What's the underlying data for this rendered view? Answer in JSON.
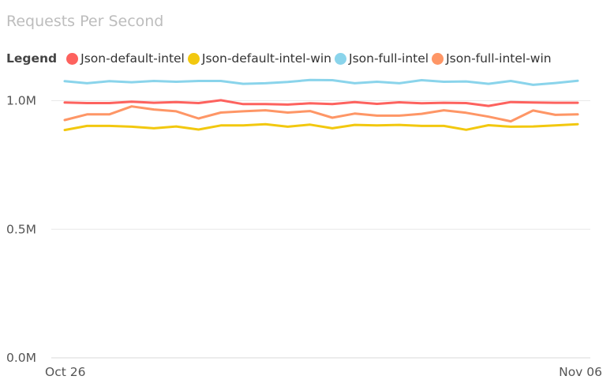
{
  "chart_data": {
    "type": "line",
    "title": "Requests Per Second",
    "legend_title": "Legend",
    "legend_position": "top-left",
    "grid": true,
    "ylim": [
      0,
      1100000
    ],
    "y_ticks": [
      0,
      500000,
      1000000
    ],
    "y_tick_labels": [
      "0.0M",
      "0.5M",
      "1.0M"
    ],
    "x_tick_labels": [
      "Oct 26",
      "Nov 06"
    ],
    "series": [
      {
        "name": "Json-default-intel",
        "color": "#FD625E",
        "values": [
          993000,
          991000,
          991000,
          996000,
          992000,
          995000,
          991000,
          1002000,
          987000,
          987000,
          985000,
          990000,
          987000,
          995000,
          988000,
          994000,
          990000,
          992000,
          991000,
          980000,
          995000,
          993000,
          992000,
          992000
        ]
      },
      {
        "name": "Json-default-intel-win",
        "color": "#F2C80F",
        "values": [
          886000,
          902000,
          902000,
          899000,
          893000,
          900000,
          888000,
          904000,
          904000,
          909000,
          899000,
          907000,
          893000,
          906000,
          904000,
          906000,
          902000,
          902000,
          887000,
          905000,
          899000,
          900000,
          904000,
          909000
        ]
      },
      {
        "name": "Json-full-intel",
        "color": "#8AD4EB",
        "values": [
          1076000,
          1068000,
          1076000,
          1072000,
          1077000,
          1074000,
          1077000,
          1077000,
          1066000,
          1068000,
          1073000,
          1081000,
          1080000,
          1068000,
          1074000,
          1068000,
          1080000,
          1074000,
          1075000,
          1066000,
          1077000,
          1062000,
          1069000,
          1078000
        ]
      },
      {
        "name": "Json-full-intel-win",
        "color": "#FE9666",
        "values": [
          925000,
          947000,
          947000,
          978000,
          966000,
          959000,
          931000,
          954000,
          959000,
          963000,
          954000,
          960000,
          934000,
          950000,
          942000,
          942000,
          949000,
          963000,
          953000,
          938000,
          920000,
          962000,
          945000,
          947000
        ]
      }
    ]
  }
}
